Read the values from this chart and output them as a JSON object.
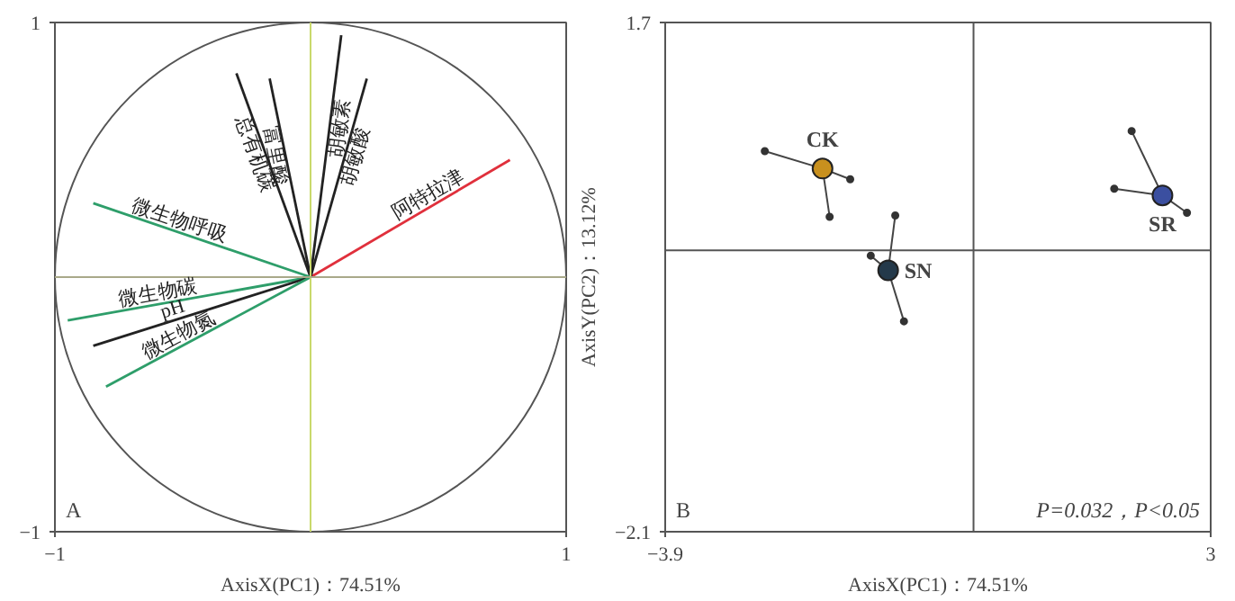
{
  "chart_data": [
    {
      "type": "line",
      "xlabel": "AxisX(PC1)：74.51%",
      "xlim": [
        -1,
        1
      ],
      "ylim": [
        -1,
        1
      ],
      "xticks": [
        {
          "value": -1,
          "label": "−1"
        },
        1
      ],
      "yticks": [
        {
          "value": -1,
          "label": "−1"
        },
        1
      ],
      "series": [
        {
          "name": "阿特拉津",
          "color": "#e0303c",
          "x": [
            0,
            0.78
          ],
          "values": [
            0,
            0.46
          ]
        },
        {
          "name": "胡敏素",
          "color": "#222222",
          "x": [
            0,
            0.12
          ],
          "values": [
            0,
            0.95
          ]
        },
        {
          "name": "胡敏酸",
          "color": "#222222",
          "x": [
            0,
            0.22
          ],
          "values": [
            0,
            0.78
          ]
        },
        {
          "name": "富里酸",
          "color": "#222222",
          "x": [
            0,
            -0.16
          ],
          "values": [
            0,
            0.78
          ]
        },
        {
          "name": "总有机碳",
          "color": "#222222",
          "x": [
            0,
            -0.29
          ],
          "values": [
            0,
            0.8
          ]
        },
        {
          "name": "微生物呼吸",
          "color": "#2e9e6a",
          "x": [
            0,
            -0.85
          ],
          "values": [
            0,
            0.29
          ]
        },
        {
          "name": "微生物碳",
          "color": "#2e9e6a",
          "x": [
            0,
            -0.95
          ],
          "values": [
            0,
            -0.17
          ]
        },
        {
          "name": "pH",
          "color": "#222222",
          "x": [
            0,
            -0.85
          ],
          "values": [
            0,
            -0.27
          ]
        },
        {
          "name": "微生物氮",
          "color": "#2e9e6a",
          "x": [
            0,
            -0.8
          ],
          "values": [
            0,
            -0.43
          ]
        }
      ],
      "ref_lines": [
        {
          "axis": "x",
          "value": 0,
          "color": "#c9d96b"
        },
        {
          "axis": "y",
          "value": 0,
          "color": "#a9a98a"
        }
      ],
      "annotations": [
        "A"
      ]
    },
    {
      "type": "scatter",
      "xlabel": "AxisX(PC1)：74.51%",
      "ylabel": "AxisY(PC2)：13.12%",
      "xlim": [
        -3.9,
        3
      ],
      "ylim": [
        -2.1,
        1.7
      ],
      "xticks": [
        {
          "value": -3.9,
          "label": "−3.9"
        },
        3
      ],
      "yticks": [
        {
          "value": -2.1,
          "label": "−2.1"
        },
        1.7
      ],
      "series": [
        {
          "name": "CK",
          "color": "#c8901e",
          "x": [
            -1.91
          ],
          "values": [
            0.61
          ]
        },
        {
          "name": "SN",
          "color": "#24394a",
          "x": [
            -1.08
          ],
          "values": [
            -0.15
          ]
        },
        {
          "name": "SR",
          "color": "#3b4fa0",
          "x": [
            2.39
          ],
          "values": [
            0.41
          ]
        },
        {
          "color": "#333333",
          "x": [
            -2.64,
            -1.56,
            -1.82
          ],
          "values": [
            0.74,
            0.53,
            0.25
          ]
        },
        {
          "color": "#333333",
          "x": [
            -0.99,
            -1.3,
            -0.88
          ],
          "values": [
            0.26,
            -0.04,
            -0.53
          ]
        },
        {
          "color": "#333333",
          "x": [
            2.0,
            1.78,
            2.7
          ],
          "values": [
            0.89,
            0.46,
            0.28
          ]
        }
      ],
      "ref_lines": [
        {
          "axis": "x",
          "value": 0,
          "color": "#555555"
        },
        {
          "axis": "y",
          "value": 0,
          "color": "#555555"
        }
      ],
      "annotations": [
        "B",
        "P=0.032，P<0.05"
      ]
    }
  ]
}
